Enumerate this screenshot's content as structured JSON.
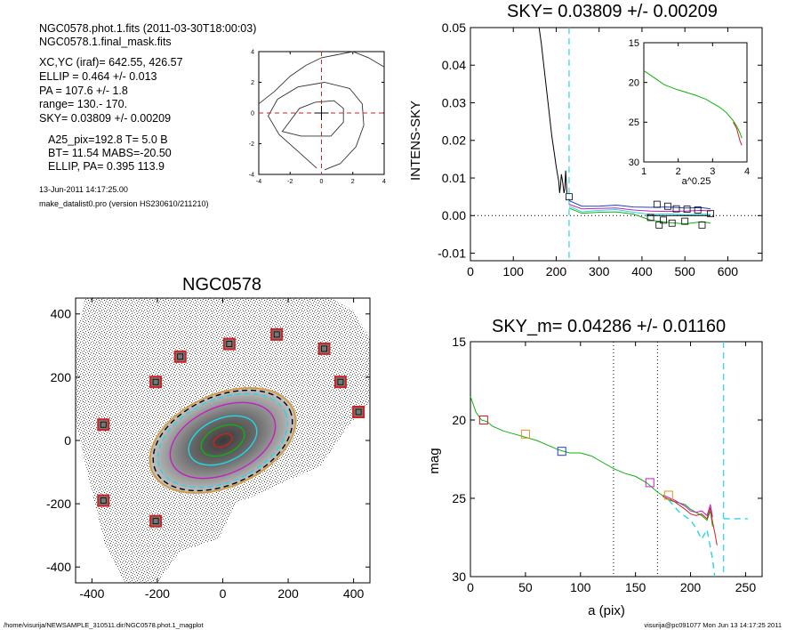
{
  "header": {
    "line1": "NGC0578.phot.1.fits  (2011-03-30T18:00:03)",
    "line2": "NGC0578.1.final_mask.fits",
    "xcyc": "XC,YC (iraf)=   642.55, 426.57",
    "ellip": "ELLIP = 0.464 +/- 0.013",
    "pa": "PA    = 107.6 +/-   1.8",
    "range": "range=  130.-  170.",
    "sky": "SKY= 0.03809 +/- 0.00209",
    "a25": "A25_pix=192.8   T= 5.0  B",
    "bt": "BT=  11.54   MABS=-20.50",
    "ellip_pa": "ELLIP, PA= 0.395   113.9",
    "date": "13-Jun-2011 14:17:25.00",
    "program": "make_datalist0.pro (version HS230610/211210)"
  },
  "footer": {
    "path": "/home/visurija/NEWSAMPLE_310511.dir/NGC0578.phot.1_magplot",
    "user": "visurija@pc091077  Mon Jun 13 14:17:25 2011"
  },
  "colors": {
    "ink": "#000000",
    "red": "#d22020",
    "cyan": "#20d8e8",
    "green": "#10b010",
    "blue": "#2040c0",
    "magenta": "#c020c0",
    "orange": "#e09020"
  },
  "chart_data": [
    {
      "id": "contour",
      "type": "contour",
      "xlim": [
        -4,
        4
      ],
      "ylim": [
        -4,
        4
      ],
      "xticks": [
        "-4",
        "-2",
        "0",
        "2",
        "4"
      ],
      "yticks": [
        "-4",
        "-2",
        "0",
        "2",
        "4"
      ],
      "crosshair": [
        0,
        0
      ],
      "contours": [
        [
          [
            -4,
            0.6
          ],
          [
            -3,
            1.4
          ],
          [
            -2,
            2.4
          ],
          [
            -1,
            3.1
          ],
          [
            0,
            3.6
          ],
          [
            1,
            3.8
          ],
          [
            2,
            4.0
          ],
          [
            3,
            3.6
          ],
          [
            4,
            3.0
          ]
        ],
        [
          [
            0.2,
            -3.7
          ],
          [
            1.2,
            -3.3
          ],
          [
            2.2,
            -2.2
          ],
          [
            2.7,
            -0.8
          ],
          [
            2.6,
            0.6
          ],
          [
            1.8,
            1.6
          ],
          [
            0.2,
            2.0
          ],
          [
            -1.5,
            1.7
          ],
          [
            -2.8,
            0.9
          ],
          [
            -3.4,
            -0.2
          ],
          [
            -2.7,
            -1.4
          ],
          [
            -1.5,
            -2.5
          ],
          [
            -0.3,
            -3.6
          ]
        ],
        [
          [
            -1.3,
            -1.5
          ],
          [
            0.6,
            -1.5
          ],
          [
            1.4,
            -0.6
          ],
          [
            1.4,
            0.3
          ],
          [
            0.8,
            0.8
          ],
          [
            -0.4,
            0.7
          ],
          [
            -1.4,
            0.3
          ],
          [
            -2.5,
            -1.2
          ],
          [
            -1.3,
            -1.5
          ]
        ]
      ]
    },
    {
      "id": "sky",
      "type": "line",
      "title": "SKY= 0.03809 +/- 0.00209",
      "ylabel": "INTENS-SKY",
      "xlim": [
        0,
        680
      ],
      "ylim": [
        -0.012,
        0.05
      ],
      "xticks": [
        "0",
        "100",
        "200",
        "300",
        "400",
        "500",
        "600"
      ],
      "yticks": [
        "-0.01",
        "0.00",
        "0.01",
        "0.02",
        "0.03",
        "0.04",
        "0.05"
      ],
      "sky_radius": 230,
      "series": [
        {
          "color": "ink",
          "x": [
            160,
            165,
            170,
            175,
            180,
            185,
            190,
            195,
            200,
            203,
            206,
            208,
            210,
            212,
            215,
            218,
            220,
            222,
            225
          ],
          "y": [
            0.05,
            0.046,
            0.041,
            0.036,
            0.031,
            0.026,
            0.021,
            0.017,
            0.013,
            0.011,
            0.009,
            0.006,
            0.008,
            0.011,
            0.009,
            0.006,
            0.007,
            0.012,
            0.006
          ]
        },
        {
          "color": "blue",
          "x": [
            230,
            260,
            300,
            340,
            380,
            420,
            460,
            500,
            540,
            560
          ],
          "y": [
            0.004,
            0.0025,
            0.0025,
            0.0028,
            0.0023,
            0.0022,
            0.0023,
            0.002,
            0.0021,
            0.0018
          ]
        },
        {
          "color": "magenta",
          "x": [
            230,
            260,
            300,
            340,
            380,
            420,
            460,
            500,
            540,
            560
          ],
          "y": [
            0.003,
            0.0018,
            0.0019,
            0.002,
            0.0015,
            0.0012,
            0.0011,
            0.0012,
            0.0014,
            0.0012
          ]
        },
        {
          "color": "cyan",
          "x": [
            230,
            260,
            300,
            340,
            380,
            420,
            460,
            500,
            540,
            560
          ],
          "y": [
            0.0025,
            0.001,
            0.0014,
            0.0016,
            0.0009,
            0.0003,
            0.0005,
            0.0002,
            0.0004,
            0.0003
          ]
        },
        {
          "color": "green",
          "x": [
            230,
            260,
            300,
            340,
            380,
            420,
            460,
            500,
            540,
            560
          ],
          "y": [
            0.002,
            0.0006,
            0.0009,
            0.001,
            0.0004,
            -0.0012,
            -0.0018,
            -0.0022,
            -0.0016,
            -0.002
          ]
        },
        {
          "color": "ink",
          "x": [
            410,
            440,
            470,
            500,
            530,
            560
          ],
          "y": [
            0.0,
            0.0,
            0.0,
            0.0,
            0.0,
            0.0
          ]
        }
      ],
      "markers": [
        [
          230,
          0.005
        ],
        [
          435,
          0.003
        ],
        [
          460,
          0.0025
        ],
        [
          480,
          0.0018
        ],
        [
          505,
          0.0017
        ],
        [
          530,
          0.0015
        ],
        [
          560,
          0.0005
        ],
        [
          420,
          -0.0005
        ],
        [
          450,
          -0.0012
        ],
        [
          470,
          -0.002
        ],
        [
          500,
          -0.0015
        ],
        [
          540,
          -0.0025
        ],
        [
          440,
          -0.0025
        ]
      ]
    },
    {
      "id": "inset",
      "type": "line",
      "xlabel": "a^0.25",
      "xlim": [
        1,
        4
      ],
      "ylim": [
        15,
        30
      ],
      "y_inverted": true,
      "xticks": [
        "1",
        "2",
        "3",
        "4"
      ],
      "yticks": [
        "15",
        "20",
        "25",
        "30"
      ],
      "series": [
        {
          "color": "green",
          "x": [
            1.0,
            1.3,
            1.6,
            1.9,
            2.2,
            2.5,
            2.8,
            3.0,
            3.2,
            3.4,
            3.6,
            3.7,
            3.8,
            3.85
          ],
          "y": [
            18.5,
            19.4,
            20.3,
            20.8,
            21.2,
            21.6,
            22.1,
            22.6,
            23.1,
            23.8,
            24.8,
            25.5,
            26.4,
            27.0
          ]
        },
        {
          "color": "red",
          "x": [
            3.6,
            3.7,
            3.75,
            3.8,
            3.85
          ],
          "y": [
            25.0,
            25.8,
            26.6,
            27.4,
            27.9
          ]
        }
      ]
    },
    {
      "id": "galaxy",
      "type": "image",
      "title": "NGC0578",
      "xlim": [
        -450,
        450
      ],
      "ylim": [
        -450,
        450
      ],
      "xticks": [
        "-400",
        "-200",
        "0",
        "200",
        "400"
      ],
      "yticks": [
        "-400",
        "-200",
        "0",
        "200",
        "400"
      ],
      "boxes": [
        [
          -365,
          50
        ],
        [
          -205,
          185
        ],
        [
          -130,
          265
        ],
        [
          20,
          305
        ],
        [
          165,
          335
        ],
        [
          310,
          290
        ],
        [
          360,
          185
        ],
        [
          415,
          90
        ],
        [
          -365,
          -190
        ],
        [
          -205,
          -255
        ]
      ],
      "ellipse_pa_deg": 24,
      "ellipse_ratio": 0.6,
      "ellipses": [
        {
          "a": 235,
          "color": "orange"
        },
        {
          "a": 225,
          "color": "ink",
          "dashed": true
        },
        {
          "a": 210,
          "color": "cyan",
          "dashed": true
        },
        {
          "a": 170,
          "color": "magenta"
        },
        {
          "a": 110,
          "color": "cyan"
        },
        {
          "a": 70,
          "color": "green"
        },
        {
          "a": 30,
          "color": "red"
        }
      ]
    },
    {
      "id": "sbprofile",
      "type": "line",
      "title": "SKY_m=  0.04286 +/- 0.01160",
      "xlabel": "a (pix)",
      "ylabel": "mag",
      "xlim": [
        0,
        265
      ],
      "ylim": [
        15,
        30
      ],
      "y_inverted": true,
      "xticks": [
        "0",
        "50",
        "100",
        "150",
        "200",
        "250"
      ],
      "yticks": [
        "15",
        "20",
        "25",
        "30"
      ],
      "vlines": [
        130,
        170
      ],
      "sky_radius": 230,
      "series": [
        {
          "color": "green",
          "x": [
            0,
            5,
            10,
            15,
            20,
            30,
            40,
            50,
            60,
            70,
            80,
            90,
            100,
            110,
            120,
            130,
            140,
            150,
            160,
            170,
            180,
            190,
            195,
            200,
            205,
            210,
            215,
            218,
            220
          ],
          "y": [
            18.5,
            19.5,
            20.0,
            20.1,
            20.4,
            20.7,
            20.9,
            21.1,
            21.3,
            21.6,
            21.9,
            22.1,
            22.1,
            22.3,
            22.7,
            23.1,
            23.4,
            23.6,
            24.0,
            24.6,
            25.1,
            25.3,
            25.4,
            25.7,
            25.9,
            26.1,
            26.4,
            25.8,
            26.8
          ]
        },
        {
          "color": "red",
          "x": [
            175,
            185,
            195,
            200,
            205,
            210,
            215,
            218,
            220,
            222,
            224
          ],
          "y": [
            24.9,
            25.2,
            25.7,
            26.0,
            26.1,
            26.0,
            26.3,
            25.6,
            26.5,
            27.2,
            28.0
          ]
        },
        {
          "color": "magenta",
          "x": [
            175,
            185,
            195,
            200,
            205,
            210,
            215,
            218,
            220
          ],
          "y": [
            24.8,
            25.1,
            25.5,
            25.8,
            25.9,
            25.8,
            26.1,
            25.4,
            26.2
          ]
        },
        {
          "color": "cyan",
          "x": [
            180,
            190,
            200,
            205,
            210,
            215,
            220,
            222
          ],
          "y": [
            25.1,
            25.9,
            26.4,
            26.9,
            27.6,
            27.0,
            28.9,
            30.0
          ],
          "dashed": true
        },
        {
          "color": "cyan",
          "x": [
            230,
            252
          ],
          "y": [
            26.3,
            26.3
          ],
          "dashed": true
        }
      ],
      "markers": [
        {
          "x": 12,
          "y": 20.0,
          "color": "red"
        },
        {
          "x": 50,
          "y": 20.9,
          "color": "orange"
        },
        {
          "x": 83,
          "y": 22.0,
          "color": "blue"
        },
        {
          "x": 163,
          "y": 24.0,
          "color": "magenta"
        },
        {
          "x": 180,
          "y": 24.8,
          "color": "orange"
        }
      ]
    }
  ]
}
